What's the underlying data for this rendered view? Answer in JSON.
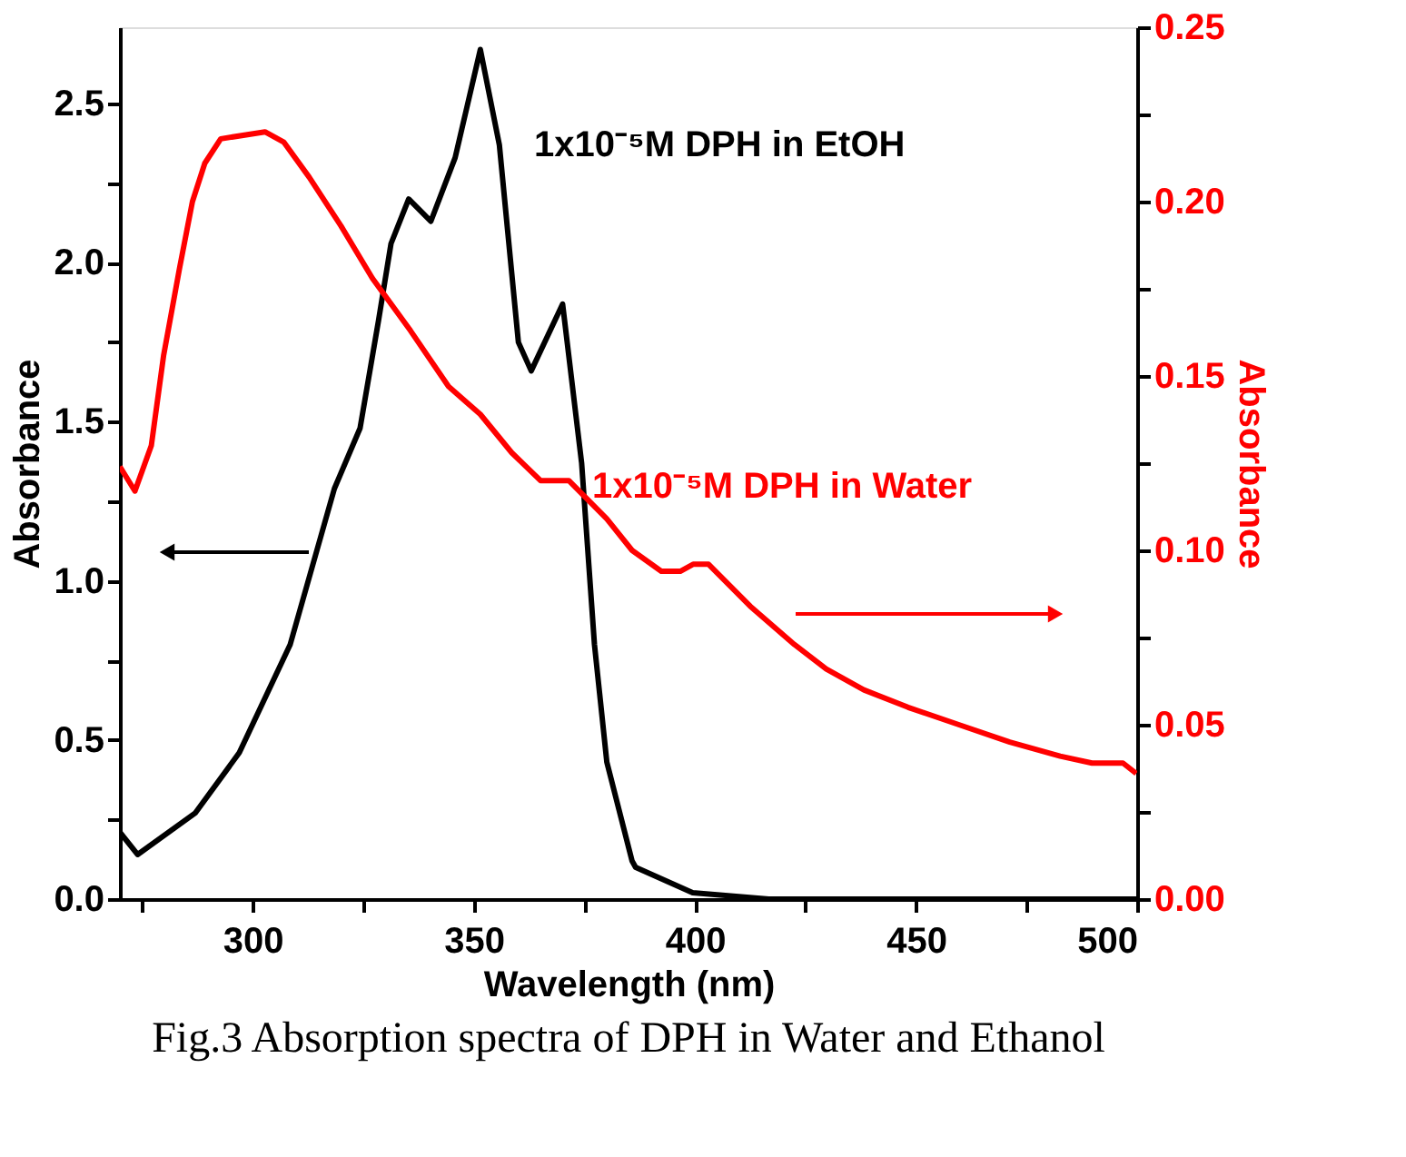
{
  "chart_data": {
    "type": "line",
    "xlabel": "Wavelength (nm)",
    "ylabel": "Absorbance",
    "y2label": "Absorbance",
    "grid": false,
    "xlim": [
      270,
      500
    ],
    "xticks": [
      {
        "value": 275,
        "label": null
      },
      300,
      {
        "value": 325,
        "label": null
      },
      350,
      {
        "value": 375,
        "label": null
      },
      400,
      {
        "value": 425,
        "label": null
      },
      450,
      {
        "value": 475,
        "label": null
      },
      500
    ],
    "ylim": [
      0,
      2.74
    ],
    "yticks": [
      {
        "value": 0,
        "label": "0.0"
      },
      {
        "value": 0.25,
        "label": null
      },
      0.5,
      {
        "value": 0.75,
        "label": null
      },
      {
        "value": 1,
        "label": "1.0"
      },
      {
        "value": 1.25,
        "label": null
      },
      1.5,
      {
        "value": 1.75,
        "label": null
      },
      {
        "value": 2,
        "label": "2.0"
      },
      {
        "value": 2.25,
        "label": null
      },
      2.5
    ],
    "y2lim": [
      0,
      0.25
    ],
    "y2ticks": [
      {
        "value": 0,
        "label": "0.00"
      },
      {
        "value": 0.025,
        "label": null
      },
      0.05,
      {
        "value": 0.075,
        "label": null
      },
      {
        "value": 0.1,
        "label": "0.10"
      },
      {
        "value": 0.125,
        "label": null
      },
      0.15,
      {
        "value": 0.175,
        "label": null
      },
      {
        "value": 0.2,
        "label": "0.20"
      },
      {
        "value": 0.225,
        "label": null
      },
      0.25
    ],
    "annotations": [
      "Fig.3 Absorption spectra of DPH in Water and Ethanol"
    ],
    "series": [
      {
        "name": "1x10⁻⁵M DPH in EtOH",
        "color": "#000000",
        "x": [
          270,
          274,
          287,
          297,
          308.5,
          318.5,
          324.3,
          328.5,
          331.3,
          335.3,
          340.3,
          345.8,
          351.5,
          355.8,
          360.1,
          363,
          370.1,
          374.4,
          377.3,
          380.1,
          385.8,
          386.6,
          399.5,
          416.7,
          450,
          500
        ],
        "values": [
          0.21,
          0.14,
          0.27,
          0.46,
          0.8,
          1.29,
          1.48,
          1.82,
          2.06,
          2.2,
          2.13,
          2.33,
          2.67,
          2.37,
          1.75,
          1.66,
          1.87,
          1.37,
          0.8,
          0.43,
          0.12,
          0.1,
          0.02,
          0.0,
          0.0,
          0.0
        ]
      },
      {
        "name": "1x10⁻⁵M DPH in Water",
        "color": "#ff0000",
        "axis": "y2",
        "x": [
          270,
          273.4,
          277.1,
          279.9,
          283.5,
          286.4,
          289.2,
          292.8,
          302.8,
          307.1,
          312.8,
          320,
          327.1,
          335.7,
          344.3,
          351.5,
          358.6,
          365.1,
          371.5,
          380.1,
          385.8,
          392.4,
          396.7,
          399.6,
          403.1,
          412.5,
          422.5,
          429.7,
          438.2,
          448.2,
          459.7,
          471.2,
          482.6,
          489.8,
          496.8,
          499.8
        ],
        "values": [
          0.124,
          0.117,
          0.13,
          0.156,
          0.181,
          0.2,
          0.211,
          0.218,
          0.22,
          0.217,
          0.207,
          0.193,
          0.178,
          0.163,
          0.147,
          0.139,
          0.128,
          0.12,
          0.12,
          0.109,
          0.1,
          0.094,
          0.094,
          0.096,
          0.096,
          0.084,
          0.073,
          0.066,
          0.06,
          0.055,
          0.05,
          0.045,
          0.041,
          0.039,
          0.039,
          0.036
        ]
      }
    ]
  }
}
